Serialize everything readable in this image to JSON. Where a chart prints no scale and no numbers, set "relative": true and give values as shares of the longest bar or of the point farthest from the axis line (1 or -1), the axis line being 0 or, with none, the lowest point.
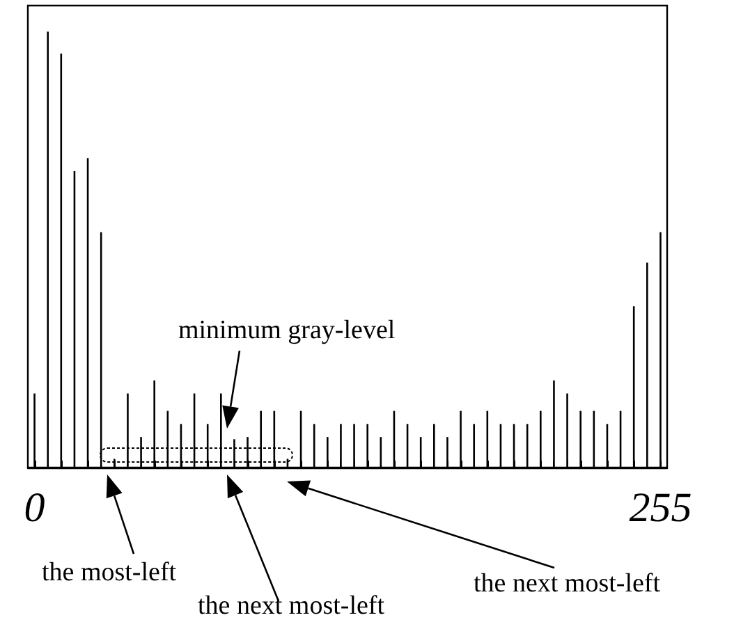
{
  "chart_data": {
    "type": "bar",
    "relative": true,
    "color": "#000000",
    "categories": [
      "0",
      null,
      null,
      null,
      null,
      null,
      null,
      null,
      null,
      null,
      null,
      null,
      null,
      null,
      null,
      null,
      null,
      null,
      null,
      null,
      null,
      null,
      null,
      null,
      null,
      null,
      null,
      null,
      null,
      null,
      null,
      null,
      null,
      null,
      null,
      null,
      null,
      null,
      null,
      null,
      null,
      null,
      null,
      null,
      null,
      null,
      null,
      "255"
    ],
    "values": [
      0.17,
      1,
      0.95,
      0.68,
      0.71,
      0.54,
      0.02,
      0.17,
      0.07,
      0.2,
      0.13,
      0.1,
      0.17,
      0.1,
      0.17,
      0.065,
      0.07,
      0.13,
      0.13,
      0.02,
      0.13,
      0.1,
      0.07,
      0.1,
      0.1,
      0.1,
      0.07,
      0.13,
      0.1,
      0.07,
      0.1,
      0.07,
      0.13,
      0.1,
      0.13,
      0.1,
      0.1,
      0.1,
      0.13,
      0.2,
      0.17,
      0.13,
      0.13,
      0.1,
      0.13,
      0.37,
      0.47,
      0.54
    ],
    "annotations": [
      "minimum gray-level",
      "the most-left",
      "the next most-left",
      "the next most-left"
    ],
    "grid": false
  }
}
